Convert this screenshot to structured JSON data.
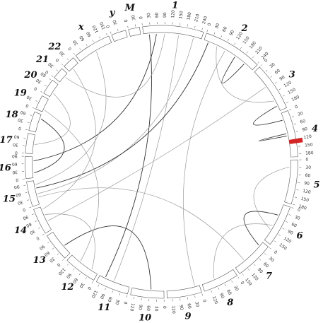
{
  "figure": {
    "type": "circos-ideogram",
    "chromosomes": [
      {
        "label": "1",
        "length": 249,
        "ticks": [
          "0",
          "30",
          "60",
          "90",
          "120",
          "150",
          "180",
          "210",
          "240"
        ]
      },
      {
        "label": "2",
        "length": 243,
        "ticks": [
          "0",
          "30",
          "60",
          "90",
          "120",
          "150",
          "180",
          "210",
          "240"
        ]
      },
      {
        "label": "3",
        "length": 198,
        "ticks": [
          "0",
          "30",
          "60",
          "90",
          "120",
          "150",
          "180"
        ]
      },
      {
        "label": "4",
        "length": 191,
        "ticks": [
          "0",
          "30",
          "60",
          "90",
          "120",
          "150",
          "180"
        ],
        "highlight": {
          "start": 118,
          "end": 136,
          "color": "#d42424"
        }
      },
      {
        "label": "5",
        "length": 181,
        "ticks": [
          "0",
          "30",
          "60",
          "90",
          "120",
          "150",
          "180"
        ]
      },
      {
        "label": "6",
        "length": 171,
        "ticks": [
          "0",
          "30",
          "60",
          "90",
          "120",
          "150"
        ]
      },
      {
        "label": "7",
        "length": 159,
        "ticks": [
          "0",
          "30",
          "60",
          "90",
          "120",
          "150"
        ]
      },
      {
        "label": "8",
        "length": 146,
        "ticks": [
          "0",
          "30",
          "60",
          "90",
          "120"
        ]
      },
      {
        "label": "9",
        "length": 141,
        "ticks": [
          "0",
          "30",
          "60",
          "90",
          "120"
        ]
      },
      {
        "label": "10",
        "length": 136,
        "ticks": [
          "0",
          "30",
          "60",
          "90",
          "120"
        ]
      },
      {
        "label": "11",
        "length": 135,
        "ticks": [
          "0",
          "30",
          "60",
          "90",
          "120"
        ]
      },
      {
        "label": "12",
        "length": 134,
        "ticks": [
          "0",
          "30",
          "60",
          "90",
          "120"
        ]
      },
      {
        "label": "13",
        "length": 115,
        "ticks": [
          "0",
          "30",
          "60",
          "90"
        ]
      },
      {
        "label": "14",
        "length": 107,
        "ticks": [
          "0",
          "30",
          "60",
          "90"
        ]
      },
      {
        "label": "15",
        "length": 103,
        "ticks": [
          "0",
          "30",
          "60",
          "90"
        ]
      },
      {
        "label": "16",
        "length": 90,
        "ticks": [
          "0",
          "30",
          "60",
          "90"
        ]
      },
      {
        "label": "17",
        "length": 81,
        "ticks": [
          "0",
          "30",
          "60"
        ]
      },
      {
        "label": "18",
        "length": 78,
        "ticks": [
          "0",
          "30",
          "60"
        ]
      },
      {
        "label": "19",
        "length": 59,
        "ticks": [
          "0",
          "30"
        ]
      },
      {
        "label": "20",
        "length": 63,
        "ticks": [
          "0",
          "30",
          "60"
        ]
      },
      {
        "label": "21",
        "length": 48,
        "ticks": [
          "0",
          "30"
        ]
      },
      {
        "label": "22",
        "length": 51,
        "ticks": [
          "0",
          "30"
        ]
      },
      {
        "label": "x",
        "length": 155,
        "ticks": [
          "0",
          "30",
          "60",
          "90",
          "120",
          "150"
        ]
      },
      {
        "label": "y",
        "length": 59,
        "ticks": [
          "0",
          "30"
        ]
      },
      {
        "label": "M",
        "length": 45,
        "ticks": [
          "0",
          "30"
        ]
      }
    ],
    "links": [
      {
        "from": [
          "1",
          25
        ],
        "to": [
          "11",
          110
        ],
        "style": "dark"
      },
      {
        "from": [
          "1",
          55
        ],
        "to": [
          "16",
          72
        ],
        "style": "dark"
      },
      {
        "from": [
          "1",
          150
        ],
        "to": [
          "11",
          70
        ],
        "style": "light"
      },
      {
        "from": [
          "1",
          215
        ],
        "to": [
          "15",
          45
        ],
        "style": "light"
      },
      {
        "from": [
          "2",
          20
        ],
        "to": [
          "15",
          70
        ],
        "style": "dark"
      },
      {
        "from": [
          "2",
          60
        ],
        "to": [
          "3",
          150
        ],
        "style": "light"
      },
      {
        "from": [
          "2",
          100
        ],
        "to": [
          "9",
          20
        ],
        "style": "light"
      },
      {
        "from": [
          "2",
          150
        ],
        "to": [
          "2",
          200
        ],
        "style": "dark"
      },
      {
        "from": [
          "3",
          80
        ],
        "to": [
          "14",
          40
        ],
        "style": "light"
      },
      {
        "from": [
          "3",
          175
        ],
        "to": [
          "4",
          30
        ],
        "style": "dark"
      },
      {
        "from": [
          "4",
          90
        ],
        "to": [
          "4",
          100
        ],
        "style": "dark"
      },
      {
        "from": [
          "5",
          30
        ],
        "to": [
          "6",
          120
        ],
        "style": "light"
      },
      {
        "from": [
          "6",
          50
        ],
        "to": [
          "7",
          20
        ],
        "style": "dark"
      },
      {
        "from": [
          "6",
          100
        ],
        "to": [
          "8",
          90
        ],
        "style": "light"
      },
      {
        "from": [
          "7",
          110
        ],
        "to": [
          "15",
          30
        ],
        "style": "light"
      },
      {
        "from": [
          "10",
          55
        ],
        "to": [
          "13",
          40
        ],
        "style": "dark"
      },
      {
        "from": [
          "12",
          30
        ],
        "to": [
          "14",
          70
        ],
        "style": "light"
      },
      {
        "from": [
          "17",
          40
        ],
        "to": [
          "20",
          20
        ],
        "style": "light"
      },
      {
        "from": [
          "18",
          60
        ],
        "to": [
          "16",
          20
        ],
        "style": "dark"
      },
      {
        "from": [
          "19",
          10
        ],
        "to": [
          "12",
          90
        ],
        "style": "light"
      },
      {
        "from": [
          "21",
          30
        ],
        "to": [
          "1",
          90
        ],
        "style": "light"
      },
      {
        "from": [
          "22",
          20
        ],
        "to": [
          "14",
          95
        ],
        "style": "light"
      },
      {
        "from": [
          "x",
          80
        ],
        "to": [
          "15",
          85
        ],
        "style": "light"
      }
    ],
    "colors": {
      "ideogram_border": "#555555",
      "band_dark": "#111111",
      "band_mid": "#888888",
      "band_light": "#d8d8d8",
      "band_red": "#d42424",
      "band_blue": "#7f8fd0",
      "link_dark": "#333333",
      "link_light": "#9a9a9a"
    }
  }
}
